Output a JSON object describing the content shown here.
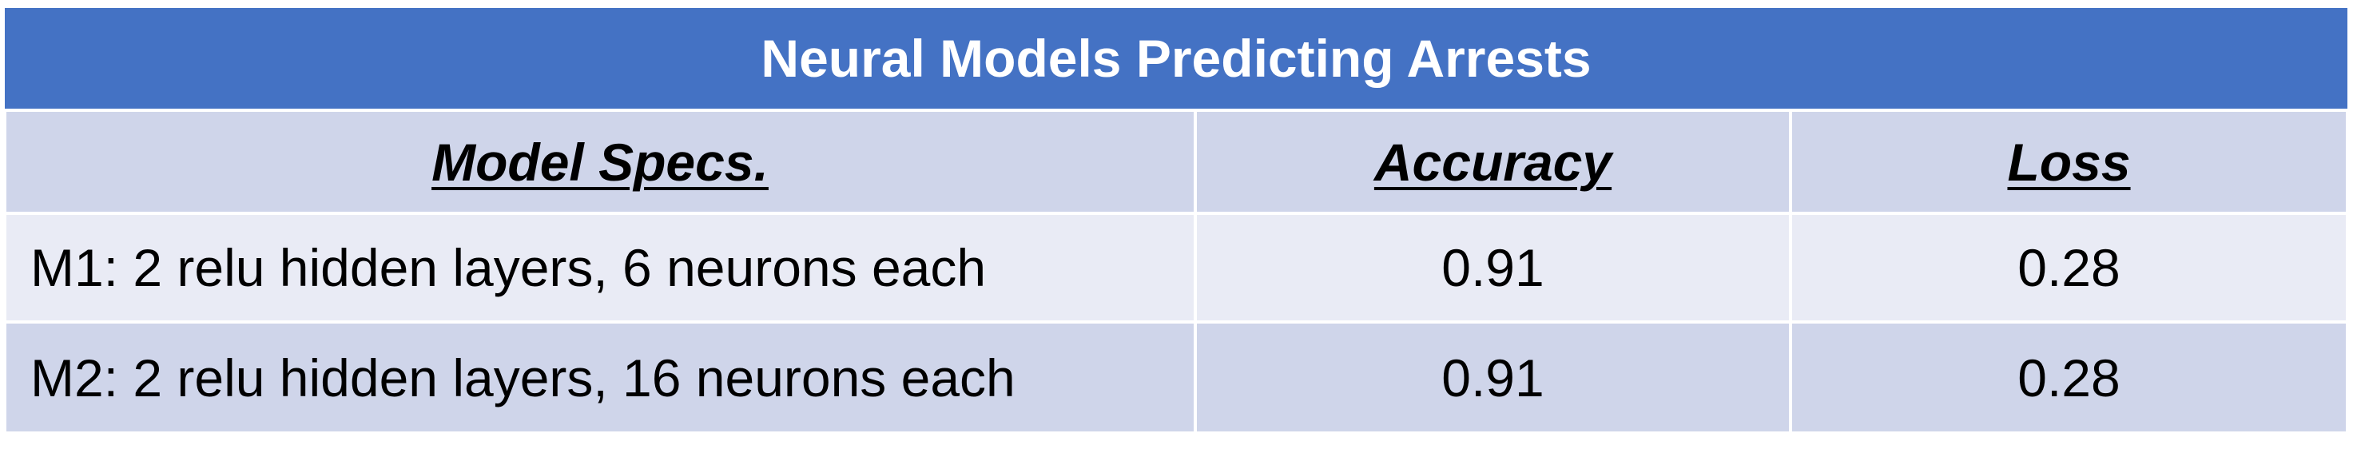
{
  "table": {
    "title": "Neural Models Predicting Arrests",
    "columns": [
      "Model Specs.",
      "Accuracy",
      "Loss"
    ],
    "rows": [
      {
        "spec": "M1: 2 relu hidden layers, 6 neurons each",
        "accuracy": "0.91",
        "loss": "0.28"
      },
      {
        "spec": "M2: 2 relu hidden layers, 16 neurons each",
        "accuracy": "0.91",
        "loss": "0.28"
      }
    ]
  },
  "colors": {
    "title_bg": "#4472c4",
    "header_bg": "#cfd5ea",
    "row_light_bg": "#e9ebf5",
    "row_dark_bg": "#cfd5ea"
  }
}
